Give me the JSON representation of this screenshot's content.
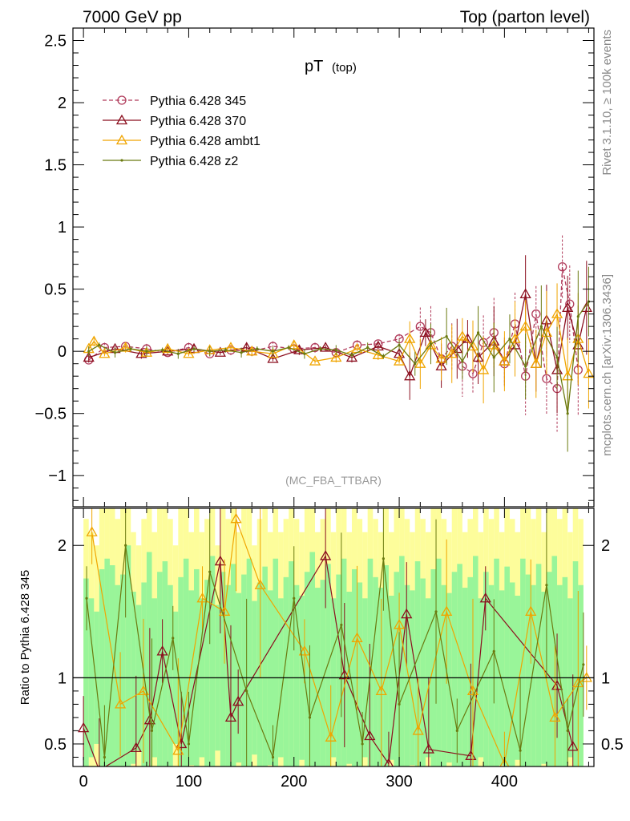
{
  "header": {
    "left": "7000 GeV pp",
    "right": "Top (parton level)"
  },
  "side_labels": {
    "rivet": "Rivet 3.1.10, ≥ 100k events",
    "mcplots": "mcplots.cern.ch [arXiv:1306.3436]"
  },
  "colors": {
    "s345": "#b03a5a",
    "s370": "#8b0e1e",
    "ambt1": "#f0a500",
    "z2": "#6b7a10",
    "band_inner": "#99f599",
    "band_outer": "#fdfd9b"
  },
  "chart_data": [
    {
      "type": "line",
      "panel": "main",
      "title": "pT",
      "title_sub": "(top)",
      "watermark": "(MC_FBA_TTBAR)",
      "xlim": [
        -10,
        485
      ],
      "ylim": [
        -1.25,
        2.6
      ],
      "yticks": [
        -1,
        -0.5,
        0,
        0.5,
        1,
        1.5,
        2,
        2.5
      ],
      "ytick_labels": [
        "−1",
        "−0.5",
        "0",
        "0.5",
        "1",
        "1.5",
        "2",
        "2.5"
      ],
      "legend_position": "top-left",
      "series": [
        {
          "name": "Pythia 6.428 345",
          "key": "s345",
          "marker": "circle",
          "dashed": true,
          "x": [
            5,
            20,
            40,
            60,
            80,
            100,
            120,
            140,
            160,
            180,
            200,
            220,
            240,
            260,
            280,
            300,
            320,
            330,
            340,
            350,
            360,
            370,
            380,
            390,
            400,
            410,
            420,
            430,
            440,
            450,
            455,
            462,
            470
          ],
          "y": [
            -0.07,
            0.03,
            0.04,
            0.02,
            -0.01,
            0.03,
            -0.02,
            0.01,
            0.0,
            0.04,
            0.02,
            0.03,
            -0.01,
            0.05,
            0.06,
            0.1,
            0.2,
            0.15,
            -0.06,
            0.04,
            -0.12,
            -0.18,
            0.07,
            0.15,
            -0.1,
            0.22,
            -0.2,
            0.3,
            -0.22,
            -0.3,
            0.68,
            0.38,
            -0.15
          ]
        },
        {
          "name": "Pythia 6.428 370",
          "key": "s370",
          "marker": "triangle",
          "dashed": false,
          "x": [
            5,
            30,
            55,
            80,
            105,
            130,
            155,
            180,
            205,
            230,
            255,
            280,
            300,
            310,
            325,
            340,
            355,
            365,
            375,
            390,
            400,
            410,
            420,
            430,
            440,
            450,
            460,
            470,
            478
          ],
          "y": [
            -0.05,
            0.02,
            -0.02,
            0.0,
            0.02,
            -0.01,
            0.03,
            -0.06,
            0.01,
            0.03,
            -0.05,
            0.04,
            -0.02,
            -0.2,
            0.15,
            -0.12,
            0.02,
            0.1,
            -0.05,
            0.08,
            -0.08,
            0.05,
            0.46,
            -0.1,
            0.25,
            -0.15,
            0.35,
            0.05,
            0.35
          ]
        },
        {
          "name": "Pythia 6.428 ambt1",
          "key": "ambt1",
          "marker": "triangle",
          "dashed": false,
          "x": [
            5,
            10,
            20,
            40,
            60,
            80,
            100,
            120,
            140,
            160,
            180,
            200,
            220,
            240,
            260,
            280,
            300,
            310,
            320,
            330,
            340,
            350,
            360,
            370,
            380,
            390,
            400,
            410,
            420,
            430,
            440,
            450,
            460,
            470,
            480
          ],
          "y": [
            0.02,
            0.08,
            -0.02,
            0.03,
            -0.01,
            0.02,
            -0.02,
            0.01,
            0.03,
            0.0,
            -0.02,
            0.05,
            -0.08,
            -0.05,
            0.02,
            -0.03,
            -0.08,
            0.1,
            -0.1,
            0.05,
            -0.06,
            -0.02,
            0.12,
            0.04,
            -0.15,
            0.05,
            -0.08,
            0.1,
            0.2,
            -0.1,
            0.15,
            0.3,
            -0.2,
            0.1,
            -0.18
          ]
        },
        {
          "name": "Pythia 6.428 z2",
          "key": "z2",
          "marker": "dot",
          "dashed": false,
          "x": [
            5,
            15,
            30,
            45,
            60,
            75,
            90,
            105,
            120,
            135,
            150,
            165,
            180,
            195,
            210,
            225,
            240,
            255,
            270,
            285,
            300,
            315,
            330,
            345,
            360,
            375,
            390,
            405,
            420,
            435,
            450,
            460,
            470,
            480
          ],
          "y": [
            0.0,
            0.05,
            -0.01,
            0.02,
            0.0,
            0.01,
            -0.02,
            0.02,
            0.0,
            0.01,
            -0.01,
            0.02,
            0.0,
            0.03,
            -0.02,
            0.02,
            0.01,
            -0.03,
            0.03,
            -0.04,
            0.05,
            -0.1,
            0.06,
            0.12,
            -0.08,
            0.15,
            -0.05,
            0.1,
            -0.12,
            0.2,
            -0.05,
            -0.5,
            0.28,
            0.4
          ]
        }
      ]
    },
    {
      "type": "line",
      "panel": "ratio",
      "ylabel": "Ratio to Pythia 6.428 345",
      "xlim": [
        -10,
        485
      ],
      "ylim": [
        0.33,
        2.28
      ],
      "xticks": [
        0,
        100,
        200,
        300,
        400
      ],
      "yticks": [
        0.5,
        1,
        2
      ],
      "reference_line": 1,
      "band": {
        "x_start": 0,
        "bin_width": 5,
        "inner": [
          0.75,
          0.6,
          0.5,
          0.82,
          0.9,
          0.85,
          0.7,
          0.78,
          1.0,
          0.65,
          0.55,
          0.72,
          0.95,
          0.6,
          0.8,
          0.88,
          0.7,
          0.5,
          0.76,
          0.9,
          0.66,
          0.82,
          0.6,
          0.74,
          0.92,
          0.55,
          0.8,
          0.7,
          0.86,
          0.64,
          0.78,
          0.9,
          0.58,
          0.72,
          0.84,
          0.66,
          0.9,
          0.6,
          0.76,
          0.88,
          0.7,
          0.62,
          0.8,
          0.95,
          0.68,
          0.74,
          0.86,
          0.6,
          0.78,
          0.9,
          0.65,
          0.82,
          0.72,
          0.6,
          0.9,
          0.76,
          0.68,
          0.85,
          0.62,
          0.8,
          0.92,
          0.7,
          0.66,
          0.88,
          0.75,
          0.6,
          0.82,
          0.9,
          0.7,
          0.64,
          0.8,
          0.86,
          0.68,
          0.76,
          0.92,
          0.6,
          0.8,
          0.7,
          0.9,
          0.66,
          0.84,
          0.72,
          0.62,
          0.9,
          0.78,
          0.7,
          0.86,
          0.65,
          0.8,
          0.92,
          0.7,
          0.76,
          0.6,
          0.88,
          0.7
        ],
        "outer": [
          1.2,
          1.1,
          1.0,
          1.3,
          1.4,
          1.3,
          1.2,
          1.3,
          1.5,
          1.1,
          1.0,
          1.2,
          1.4,
          1.1,
          1.3,
          1.4,
          1.2,
          1.0,
          1.3,
          1.4,
          1.1,
          1.3,
          1.1,
          1.2,
          1.4,
          1.0,
          1.3,
          1.2,
          1.4,
          1.1,
          1.3,
          1.4,
          1.0,
          1.2,
          1.3,
          1.1,
          1.4,
          1.1,
          1.2,
          1.4,
          1.2,
          1.1,
          1.3,
          1.5,
          1.1,
          1.2,
          1.4,
          1.1,
          1.3,
          1.4,
          1.1,
          1.3,
          1.2,
          1.1,
          1.4,
          1.2,
          1.1,
          1.3,
          1.1,
          1.3,
          1.4,
          1.2,
          1.1,
          1.4,
          1.2,
          1.1,
          1.3,
          1.4,
          1.2,
          1.1,
          1.3,
          1.4,
          1.1,
          1.2,
          1.4,
          1.1,
          1.3,
          1.2,
          1.4,
          1.1,
          1.3,
          1.2,
          1.1,
          1.4,
          1.3,
          1.2,
          1.4,
          1.1,
          1.3,
          1.4,
          1.2,
          1.3,
          1.1,
          1.4,
          1.2
        ]
      },
      "series": [
        {
          "key": "s370",
          "marker": "triangle",
          "x": [
            0,
            15,
            50,
            63,
            75,
            93,
            130,
            140,
            147,
            230,
            248,
            272,
            290,
            307,
            328,
            368,
            382,
            450,
            465
          ],
          "y": [
            0.62,
            0.3,
            0.47,
            0.68,
            1.2,
            0.5,
            1.88,
            0.7,
            0.82,
            1.92,
            1.02,
            0.56,
            0.35,
            1.48,
            0.46,
            0.41,
            1.6,
            0.94,
            0.48
          ]
        },
        {
          "key": "ambt1",
          "marker": "triangle",
          "x": [
            8,
            35,
            57,
            90,
            113,
            134,
            145,
            168,
            210,
            235,
            260,
            283,
            300,
            318,
            345,
            370,
            400,
            425,
            448,
            470,
            478
          ],
          "y": [
            2.1,
            0.8,
            0.9,
            0.45,
            1.6,
            1.5,
            2.2,
            1.7,
            1.2,
            0.55,
            1.3,
            0.9,
            1.4,
            0.6,
            1.5,
            0.9,
            0.35,
            1.5,
            0.7,
            0.96,
            1.0
          ]
        },
        {
          "key": "z2",
          "marker": "dot",
          "x": [
            3,
            20,
            40,
            65,
            85,
            100,
            120,
            155,
            180,
            200,
            215,
            245,
            265,
            285,
            300,
            335,
            355,
            390,
            415,
            440,
            460,
            475
          ],
          "y": [
            1.6,
            0.4,
            2.0,
            0.6,
            1.3,
            0.5,
            1.8,
            0.9,
            0.4,
            1.6,
            0.7,
            1.4,
            0.5,
            1.9,
            0.8,
            1.5,
            0.6,
            1.2,
            0.45,
            1.7,
            0.6,
            1.1
          ]
        }
      ]
    }
  ]
}
